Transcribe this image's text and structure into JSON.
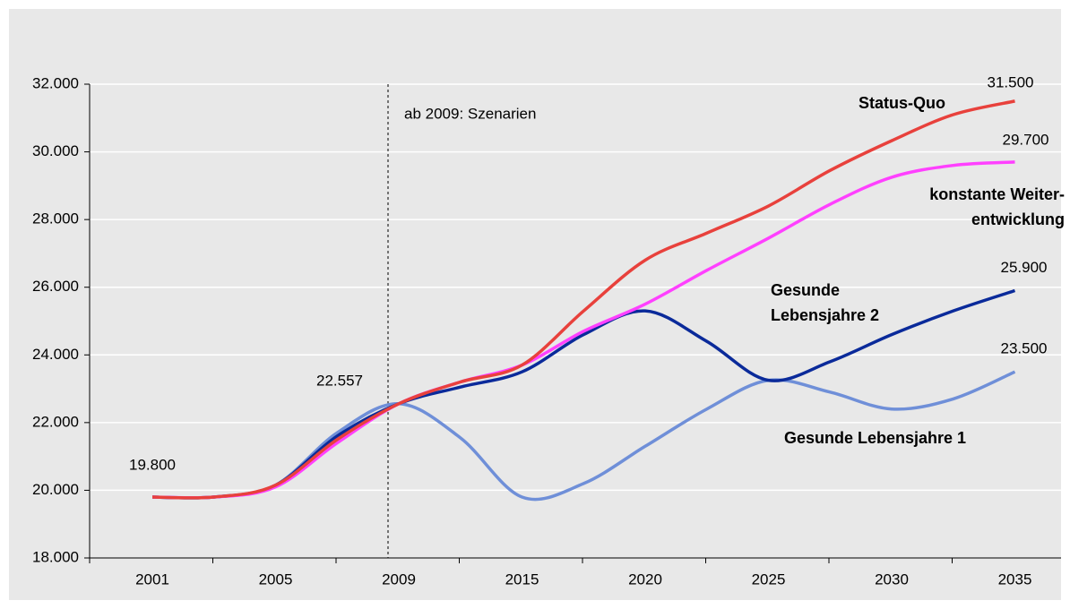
{
  "chart_data": {
    "type": "line",
    "annotation": "ab 2009: Szenarien",
    "annotation_at": "2009",
    "categories": [
      "2001",
      null,
      "2005",
      null,
      "2009",
      null,
      "2015",
      null,
      "2020",
      null,
      "2025",
      null,
      "2030",
      null,
      "2035"
    ],
    "ylim": [
      18000,
      32000
    ],
    "yticks": [
      {
        "value": 18000,
        "label": "18.000"
      },
      {
        "value": 20000,
        "label": "20.000"
      },
      {
        "value": 22000,
        "label": "22.000"
      },
      {
        "value": 24000,
        "label": "24.000"
      },
      {
        "value": 26000,
        "label": "26.000"
      },
      {
        "value": 28000,
        "label": "28.000"
      },
      {
        "value": 30000,
        "label": "30.000"
      },
      {
        "value": 32000,
        "label": "32.000"
      }
    ],
    "grid": true,
    "series": [
      {
        "name": [
          "Status-Quo"
        ],
        "color": "#e8413c",
        "values": [
          19800,
          19800,
          20150,
          21500,
          22557,
          23200,
          23700,
          25300,
          26800,
          27600,
          28400,
          29450,
          30330,
          31100,
          31500
        ],
        "value_labels": [
          "19.800",
          null,
          null,
          null,
          "22.557",
          null,
          null,
          null,
          null,
          null,
          null,
          null,
          null,
          null,
          "31.500"
        ]
      },
      {
        "name": [
          "konstante Weiter-",
          "entwicklung"
        ],
        "color": "#ff40ff",
        "values": [
          19800,
          19800,
          20100,
          21400,
          22557,
          23200,
          23700,
          24700,
          25500,
          26500,
          27450,
          28450,
          29250,
          29600,
          29700
        ],
        "value_labels": [
          null,
          null,
          null,
          null,
          null,
          null,
          null,
          null,
          null,
          null,
          null,
          null,
          null,
          null,
          "29.700"
        ]
      },
      {
        "name": [
          "Gesunde",
          "Lebensjahre 2"
        ],
        "color": "#0a2a9a",
        "values": [
          19800,
          19800,
          20150,
          21600,
          22557,
          23050,
          23500,
          24600,
          25300,
          24400,
          23250,
          23800,
          24600,
          25300,
          25900
        ],
        "value_labels": [
          null,
          null,
          null,
          null,
          null,
          null,
          null,
          null,
          null,
          null,
          null,
          null,
          null,
          null,
          "25.900"
        ]
      },
      {
        "name": [
          "Gesunde Lebensjahre 1"
        ],
        "color": "#6f8fd8",
        "values": [
          19800,
          19800,
          20150,
          21700,
          22557,
          21550,
          19800,
          20200,
          21300,
          22400,
          23250,
          22900,
          22400,
          22700,
          23500
        ],
        "value_labels": [
          null,
          null,
          null,
          null,
          null,
          null,
          null,
          null,
          null,
          null,
          null,
          null,
          null,
          null,
          "23.500"
        ]
      }
    ]
  }
}
